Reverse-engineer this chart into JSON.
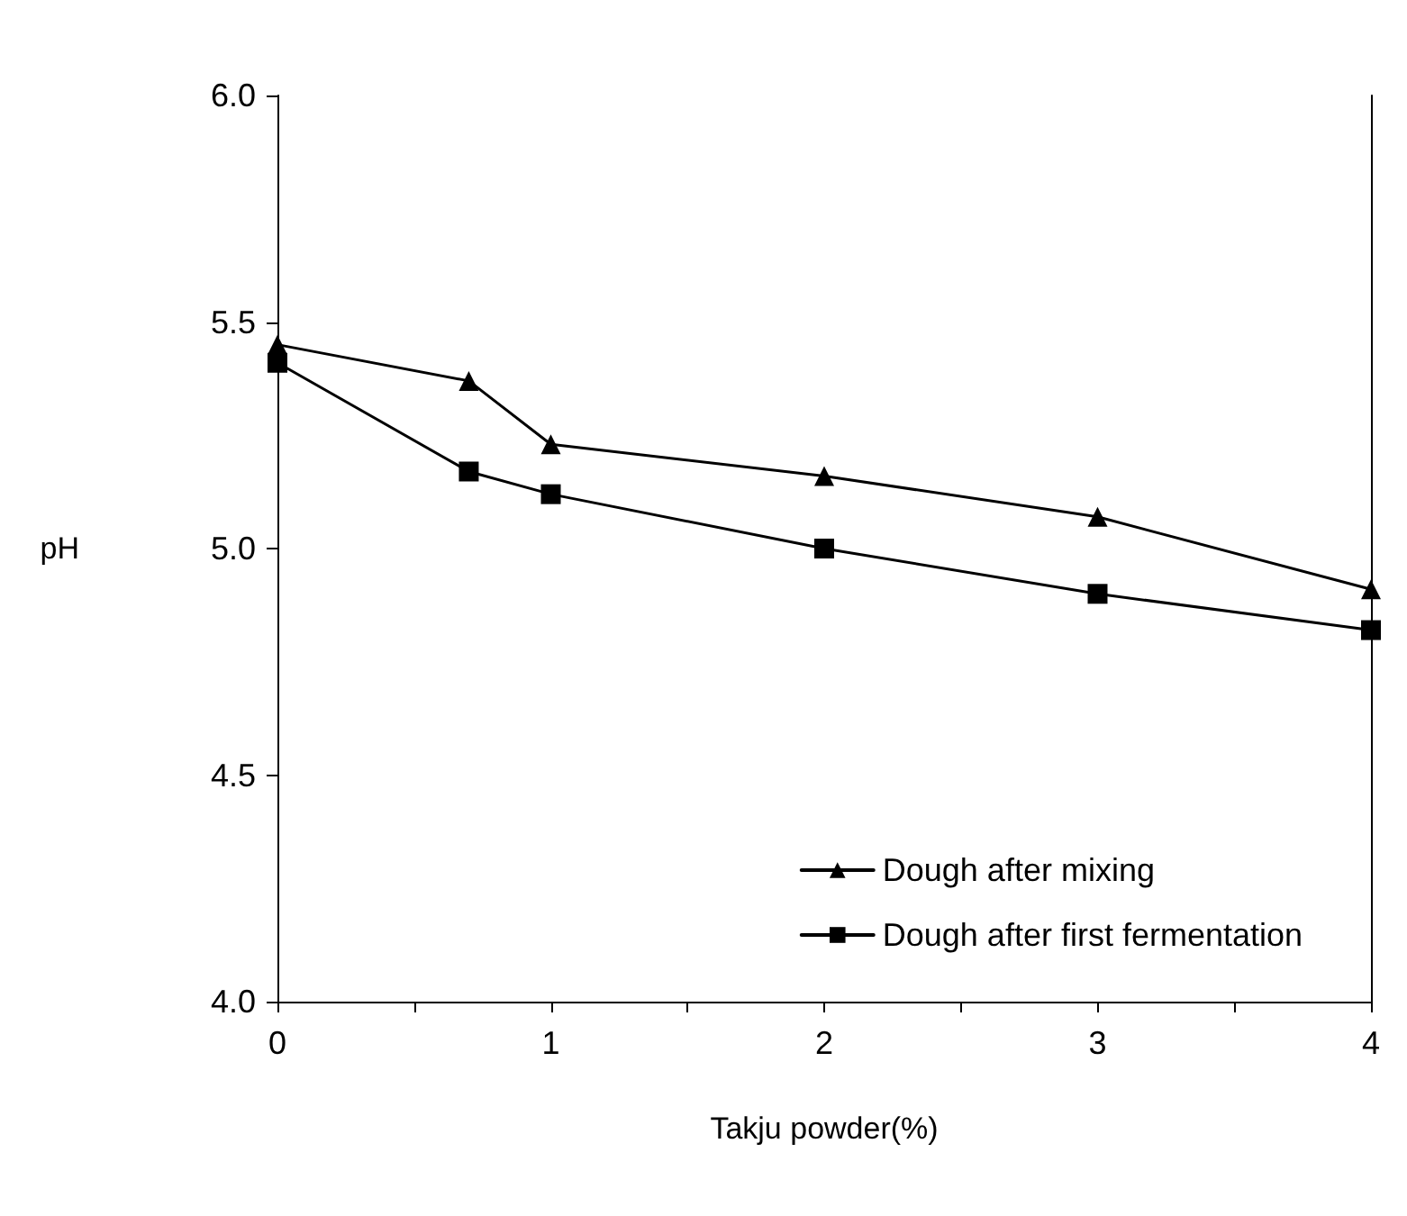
{
  "chart_data": {
    "type": "line",
    "xlabel": "Takju powder(%)",
    "ylabel": "pH",
    "x": [
      0,
      0.7,
      1,
      2,
      3,
      4
    ],
    "series": [
      {
        "name": "Dough after mixing",
        "color": "#000000",
        "marker": "triangle",
        "values": [
          5.45,
          5.37,
          5.23,
          5.16,
          5.07,
          4.91
        ]
      },
      {
        "name": "Dough after first fermentation",
        "color": "#000000",
        "marker": "square",
        "values": [
          5.41,
          5.17,
          5.12,
          5.0,
          4.9,
          4.82
        ]
      }
    ],
    "xlim": [
      0,
      4
    ],
    "xticks": [
      0,
      {
        "value": 0.5,
        "label": null
      },
      1,
      {
        "value": 1.5,
        "label": null
      },
      2,
      {
        "value": 2.5,
        "label": null
      },
      3,
      {
        "value": 3.5,
        "label": null
      },
      4
    ],
    "ylim": [
      4.0,
      6.0
    ],
    "yticks": [
      {
        "value": 4.0,
        "label": "4.0"
      },
      {
        "value": 4.5,
        "label": "4.5"
      },
      {
        "value": 5.0,
        "label": "5.0"
      },
      {
        "value": 5.5,
        "label": "5.5"
      },
      {
        "value": 6.0,
        "label": "6.0"
      }
    ],
    "grid": false,
    "legend": "bottom right",
    "line_style": "solid"
  }
}
